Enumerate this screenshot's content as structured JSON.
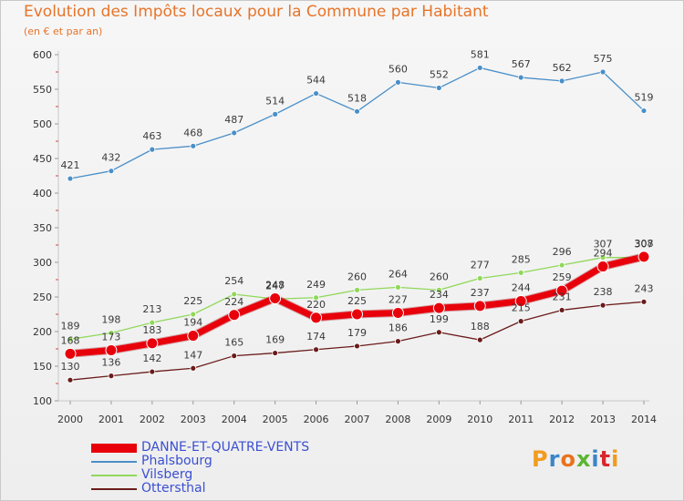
{
  "header": {
    "title": "Evolution des Impôts locaux pour la Commune par Habitant",
    "subtitle": "(en € et par an)"
  },
  "logo": {
    "text": "Proxiti",
    "colors": [
      "#f29b1d",
      "#3a86c8",
      "#e8731d",
      "#5bb531",
      "#3a86c8",
      "#d9262a",
      "#f29b1d"
    ]
  },
  "chart_data": {
    "type": "line",
    "title": "Evolution des Impôts locaux pour la Commune par Habitant",
    "subtitle": "(en € et par an)",
    "x": [
      2000,
      2001,
      2002,
      2003,
      2004,
      2005,
      2006,
      2007,
      2008,
      2009,
      2010,
      2011,
      2012,
      2013,
      2014
    ],
    "ylim": [
      100,
      600
    ],
    "yticks": [
      100,
      150,
      200,
      250,
      300,
      350,
      400,
      450,
      500,
      550,
      600
    ],
    "grid": false,
    "legend": "bottom-left",
    "series": [
      {
        "name": "DANNE-ET-QUATRE-VENTS",
        "color": "#e8000b",
        "values": [
          168,
          173,
          183,
          194,
          224,
          248,
          220,
          225,
          227,
          234,
          237,
          244,
          259,
          294,
          308
        ]
      },
      {
        "name": "Phalsbourg",
        "color": "#4a8fc8",
        "values": [
          421,
          432,
          463,
          468,
          487,
          514,
          544,
          518,
          560,
          552,
          581,
          567,
          562,
          575,
          519
        ]
      },
      {
        "name": "Vilsberg",
        "color": "#90d85a",
        "values": [
          189,
          198,
          213,
          225,
          254,
          247,
          249,
          260,
          264,
          260,
          277,
          285,
          296,
          307,
          307
        ]
      },
      {
        "name": "Ottersthal",
        "color": "#6b1b1b",
        "values": [
          130,
          136,
          142,
          147,
          165,
          169,
          174,
          179,
          186,
          199,
          188,
          215,
          231,
          238,
          243
        ]
      }
    ]
  }
}
